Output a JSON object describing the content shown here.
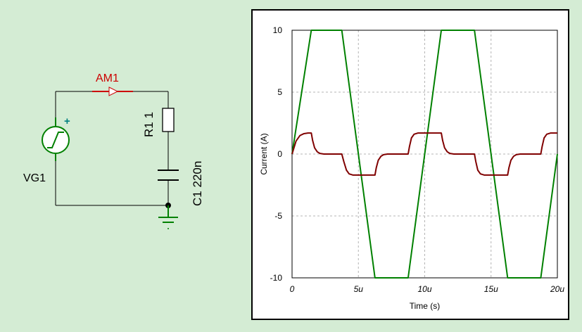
{
  "schematic": {
    "ammeter_label": "AM1",
    "resistor_label": "R1 1",
    "capacitor_label": "C1 220n",
    "source_label": "VG1",
    "source_polarity": "+",
    "colors": {
      "wire": "#000000",
      "ammeter": "#cc0000",
      "source": "#008000",
      "ground": "#008000",
      "polarity": "#008080"
    }
  },
  "chart_data": {
    "type": "line",
    "xlabel": "Time (s)",
    "ylabel": "Current (A)",
    "xlim": [
      0,
      20
    ],
    "ylim": [
      -10,
      10
    ],
    "x_unit_suffix": "u",
    "x_ticks": [
      0,
      5,
      10,
      15,
      20
    ],
    "x_tick_labels": [
      "0",
      "5u",
      "10u",
      "15u",
      "20u"
    ],
    "y_ticks": [
      10,
      5,
      0,
      -5,
      -10
    ],
    "y_tick_labels": [
      "10",
      "5",
      "0",
      "-5",
      "-10"
    ],
    "grid": true,
    "series": [
      {
        "color": "#008000",
        "x": [
          0,
          1.45,
          3.75,
          6.25,
          8.75,
          11.25,
          13.75,
          16.25,
          18.75,
          20
        ],
        "y": [
          0,
          10,
          10,
          -10,
          -10,
          10,
          10,
          -10,
          -10,
          0
        ]
      },
      {
        "color": "#800000",
        "x": [
          0,
          0.3,
          0.6,
          0.9,
          1.2,
          1.45,
          1.55,
          1.7,
          1.9,
          2.1,
          2.4,
          3.75,
          3.9,
          4.1,
          4.3,
          4.6,
          6.25,
          6.35,
          6.5,
          6.7,
          6.9,
          7.2,
          8.75,
          8.85,
          9.0,
          9.2,
          9.5,
          11.25,
          11.35,
          11.5,
          11.7,
          11.9,
          12.2,
          13.75,
          13.85,
          14.0,
          14.2,
          14.5,
          16.25,
          16.35,
          16.5,
          16.7,
          16.9,
          17.2,
          18.75,
          18.85,
          19.0,
          19.2,
          19.5,
          20
        ],
        "y": [
          0,
          1.05,
          1.5,
          1.65,
          1.7,
          1.7,
          1.1,
          0.5,
          0.18,
          0.05,
          0,
          0,
          -0.6,
          -1.3,
          -1.6,
          -1.7,
          -1.7,
          -1.1,
          -0.5,
          -0.18,
          -0.05,
          0,
          0,
          0.6,
          1.3,
          1.6,
          1.7,
          1.7,
          1.1,
          0.5,
          0.18,
          0.05,
          0,
          0,
          -0.6,
          -1.3,
          -1.6,
          -1.7,
          -1.7,
          -1.1,
          -0.5,
          -0.18,
          -0.05,
          0,
          0,
          0.6,
          1.3,
          1.6,
          1.7,
          1.7
        ]
      }
    ]
  }
}
